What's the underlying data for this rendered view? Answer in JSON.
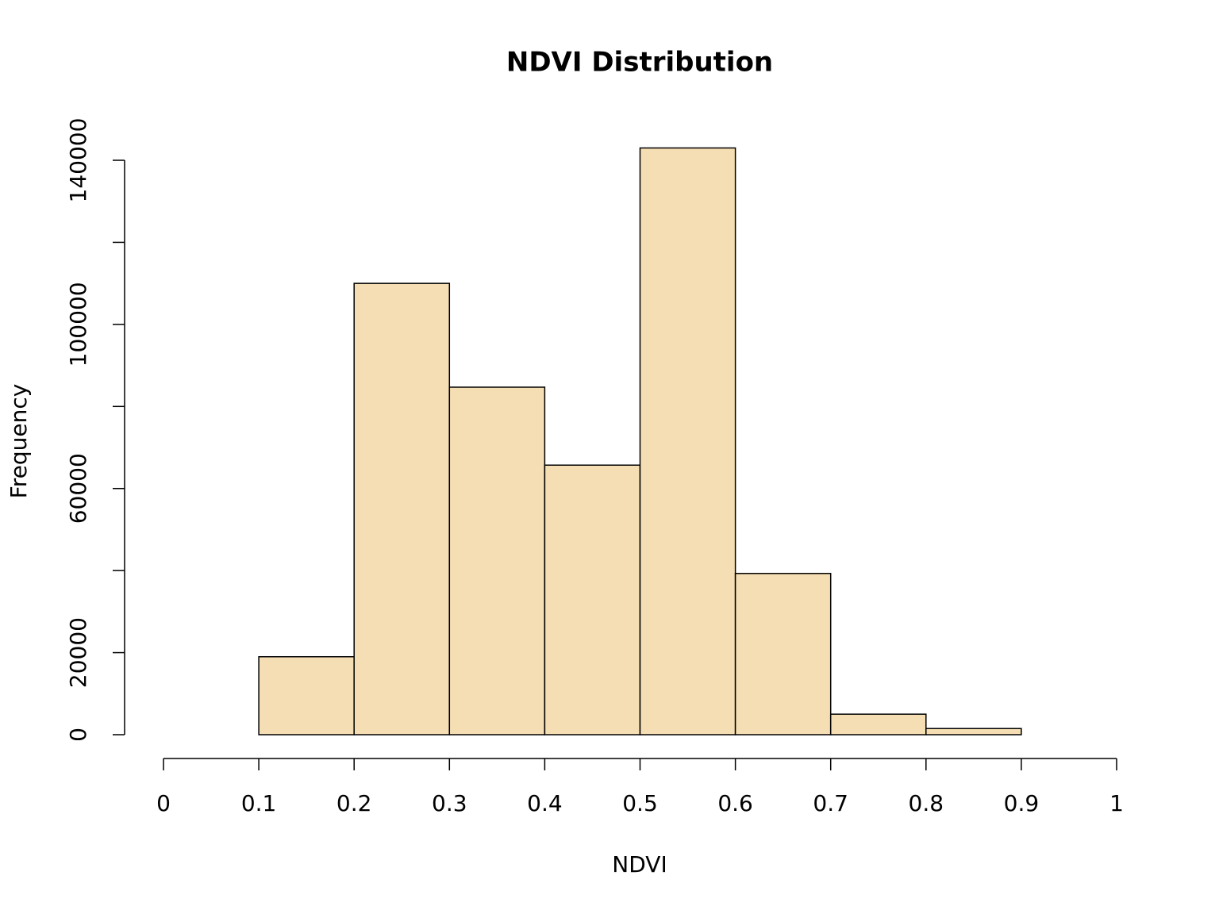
{
  "chart_data": {
    "type": "histogram",
    "title": "NDVI Distribution",
    "x_label": "NDVI",
    "y_label": "Frequency",
    "bins": [
      0,
      0.1,
      0.2,
      0.3,
      0.4,
      0.5,
      0.6,
      0.7,
      0.8,
      0.9
    ],
    "counts": [
      0,
      19000,
      110000,
      84700,
      65700,
      143000,
      39300,
      5000,
      1500
    ],
    "color": "#f5deb3",
    "xlim": [
      0,
      1
    ],
    "xticks": [
      0,
      0.1,
      0.2,
      0.3,
      0.4,
      0.5,
      0.6,
      0.7,
      0.8,
      0.9,
      1
    ],
    "ylim": [
      0,
      143000
    ],
    "yticks": [
      0,
      20000,
      60000,
      100000,
      140000
    ],
    "yticks_unlabeled": [
      40000,
      80000,
      120000
    ],
    "grid": false
  }
}
